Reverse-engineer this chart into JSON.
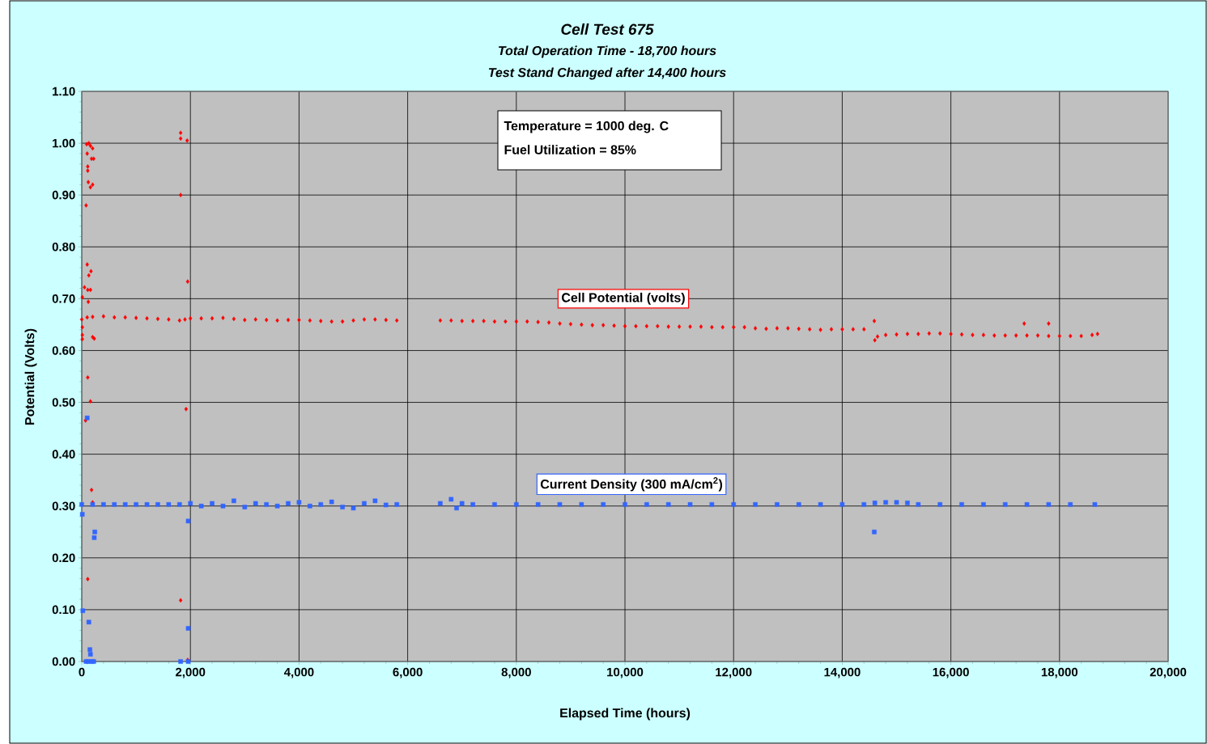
{
  "chart_data": {
    "type": "scatter",
    "title": "Cell  Test  675",
    "subtitle": "Total Operation Time - 18,700 hours",
    "annotations": [
      "Test Stand Changed after 14,400 hours",
      "Temperature  =  1000 deg. C",
      "Fuel  Utilization = 85%"
    ],
    "xlabel": "Elapsed Time  (hours)",
    "ylabel": "Potential  (Volts)",
    "xlim": [
      0,
      20000
    ],
    "ylim": [
      0,
      1.1
    ],
    "xticks": [
      0,
      {
        "value": 2000,
        "label": "2,000"
      },
      {
        "value": 4000,
        "label": "4,000"
      },
      {
        "value": 6000,
        "label": "6,000"
      },
      {
        "value": 8000,
        "label": "8,000"
      },
      {
        "value": 10000,
        "label": "10,000"
      },
      {
        "value": 12000,
        "label": "12,000"
      },
      {
        "value": 14000,
        "label": "14,000"
      },
      {
        "value": 16000,
        "label": "16,000"
      },
      {
        "value": 18000,
        "label": "18,000"
      },
      {
        "value": 20000,
        "label": "20,000"
      }
    ],
    "yticks": [
      {
        "value": 0,
        "label": "0.00"
      },
      {
        "value": 0.1,
        "label": "0.10"
      },
      {
        "value": 0.2,
        "label": "0.20"
      },
      {
        "value": 0.3,
        "label": "0.30"
      },
      {
        "value": 0.4,
        "label": "0.40"
      },
      {
        "value": 0.5,
        "label": "0.50"
      },
      {
        "value": 0.6,
        "label": "0.60"
      },
      {
        "value": 0.7,
        "label": "0.70"
      },
      {
        "value": 0.8,
        "label": "0.80"
      },
      {
        "value": 0.9,
        "label": "0.90"
      },
      {
        "value": 1.0,
        "label": "1.00"
      },
      {
        "value": 1.1,
        "label": "1.10"
      }
    ],
    "grid": true,
    "legend": false,
    "series": [
      {
        "name": "Cell  Potential  (volts)",
        "color": "#ff0000",
        "marker": "diamond",
        "x": [
          90,
          130,
          160,
          200,
          100,
          110,
          110,
          220,
          180,
          120,
          160,
          200,
          80,
          100,
          170,
          130,
          50,
          110,
          160,
          10,
          120,
          10,
          10,
          10,
          200,
          230,
          110,
          160,
          70,
          180,
          200,
          110,
          1820,
          1820,
          1940,
          1820,
          1950,
          1920,
          1820,
          1950,
          14590,
          17350,
          17800,
          0,
          100,
          200,
          400,
          600,
          800,
          1000,
          1200,
          1400,
          1600,
          1800,
          1900,
          2000,
          2200,
          2400,
          2600,
          2800,
          3000,
          3200,
          3400,
          3600,
          3800,
          4000,
          4200,
          4400,
          4600,
          4800,
          5000,
          5200,
          5400,
          5600,
          5800,
          6600,
          6800,
          7000,
          7200,
          7400,
          7600,
          7800,
          8000,
          8200,
          8400,
          8600,
          8800,
          9000,
          9200,
          9400,
          9600,
          9800,
          10000,
          10200,
          10400,
          10600,
          10800,
          11000,
          11200,
          11400,
          11600,
          11800,
          12000,
          12200,
          12400,
          12600,
          12800,
          13000,
          13200,
          13400,
          13600,
          13800,
          14000,
          14200,
          14400,
          14600,
          14650,
          14800,
          15000,
          15200,
          15400,
          15600,
          15800,
          16000,
          16200,
          16400,
          16600,
          16800,
          17000,
          17200,
          17400,
          17600,
          17800,
          18000,
          18200,
          18400,
          18600,
          18700
        ],
        "values": [
          0.998,
          1.0,
          0.995,
          0.99,
          0.98,
          0.955,
          0.947,
          0.97,
          0.97,
          0.925,
          0.915,
          0.92,
          0.88,
          0.766,
          0.753,
          0.745,
          0.722,
          0.717,
          0.717,
          0.703,
          0.694,
          0.645,
          0.63,
          0.622,
          0.626,
          0.623,
          0.548,
          0.502,
          0.465,
          0.331,
          0.307,
          0.159,
          1.02,
          1.009,
          1.005,
          0.9,
          0.733,
          0.487,
          0.118,
          0.003,
          0.657,
          0.652,
          0.652,
          0.66,
          0.664,
          0.665,
          0.666,
          0.664,
          0.664,
          0.663,
          0.662,
          0.661,
          0.66,
          0.658,
          0.66,
          0.662,
          0.662,
          0.662,
          0.663,
          0.661,
          0.659,
          0.66,
          0.659,
          0.658,
          0.659,
          0.659,
          0.658,
          0.657,
          0.656,
          0.656,
          0.658,
          0.66,
          0.66,
          0.659,
          0.658,
          0.658,
          0.658,
          0.657,
          0.657,
          0.657,
          0.656,
          0.656,
          0.656,
          0.656,
          0.655,
          0.654,
          0.652,
          0.651,
          0.65,
          0.649,
          0.649,
          0.648,
          0.647,
          0.647,
          0.647,
          0.647,
          0.646,
          0.646,
          0.646,
          0.646,
          0.645,
          0.645,
          0.645,
          0.645,
          0.643,
          0.642,
          0.643,
          0.643,
          0.642,
          0.641,
          0.64,
          0.641,
          0.641,
          0.641,
          0.641,
          0.62,
          0.627,
          0.63,
          0.631,
          0.632,
          0.632,
          0.633,
          0.633,
          0.632,
          0.631,
          0.63,
          0.63,
          0.629,
          0.629,
          0.629,
          0.629,
          0.629,
          0.628,
          0.628,
          0.628,
          0.628,
          0.63,
          0.632
        ]
      },
      {
        "name": "Current  Density  (300  mA/cm$^{2}$)",
        "color": "#3366ff",
        "marker": "square",
        "x": [
          100,
          10,
          240,
          230,
          20,
          130,
          150,
          160,
          80,
          120,
          180,
          220,
          1960,
          1960,
          1820,
          1960,
          14590,
          0,
          200,
          400,
          600,
          800,
          1000,
          1200,
          1400,
          1600,
          1800,
          2000,
          2200,
          2400,
          2600,
          2800,
          3000,
          3200,
          3400,
          3600,
          3800,
          4000,
          4200,
          4400,
          4600,
          4800,
          5000,
          5200,
          5400,
          5600,
          5800,
          6600,
          6800,
          6900,
          7000,
          7200,
          7600,
          8000,
          8400,
          8800,
          9200,
          9600,
          10000,
          10400,
          10800,
          11200,
          11600,
          12000,
          12400,
          12800,
          13200,
          13600,
          14000,
          14400,
          14600,
          14800,
          15000,
          15200,
          15400,
          15800,
          16200,
          16600,
          17000,
          17400,
          17800,
          18200,
          18650
        ],
        "values": [
          0.47,
          0.284,
          0.25,
          0.239,
          0.098,
          0.076,
          0.023,
          0.014,
          0.0,
          0.0,
          0.0,
          0.0,
          0.271,
          0.064,
          0.0,
          0.0,
          0.25,
          0.303,
          0.303,
          0.303,
          0.303,
          0.303,
          0.303,
          0.303,
          0.303,
          0.303,
          0.303,
          0.305,
          0.3,
          0.305,
          0.3,
          0.31,
          0.298,
          0.305,
          0.303,
          0.3,
          0.305,
          0.307,
          0.3,
          0.303,
          0.308,
          0.298,
          0.296,
          0.305,
          0.31,
          0.302,
          0.303,
          0.305,
          0.313,
          0.296,
          0.305,
          0.303,
          0.303,
          0.303,
          0.303,
          0.303,
          0.303,
          0.303,
          0.303,
          0.303,
          0.303,
          0.303,
          0.303,
          0.303,
          0.303,
          0.303,
          0.303,
          0.303,
          0.303,
          0.303,
          0.306,
          0.307,
          0.307,
          0.306,
          0.303,
          0.303,
          0.303,
          0.303,
          0.303,
          0.303,
          0.303,
          0.303,
          0.303
        ]
      }
    ]
  }
}
